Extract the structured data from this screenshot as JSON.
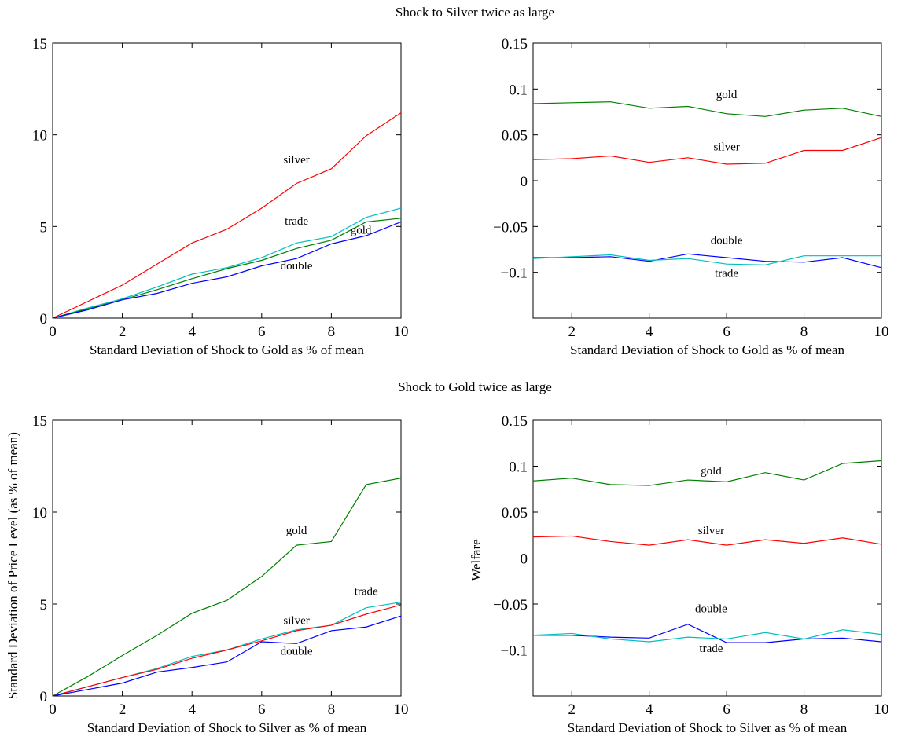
{
  "titles": {
    "top": "Shock to Silver twice as large",
    "bottom": "Shock to Gold twice as large"
  },
  "side_labels": {
    "left": "Standard Deviation of Price Level (as % of mean)",
    "right": "Welfare"
  },
  "colors": {
    "silver": "#ff0000",
    "gold": "#008000",
    "trade": "#00bfbf",
    "double": "#0000ff"
  },
  "chart_data": [
    {
      "id": "top-left",
      "type": "line",
      "xlabel": "Standard Deviation of Shock to Gold as % of mean",
      "ylabel": "",
      "xlim": [
        0,
        10
      ],
      "ylim": [
        0,
        15
      ],
      "xticks": [
        0,
        2,
        4,
        6,
        8,
        10
      ],
      "yticks": [
        0,
        5,
        10,
        15
      ],
      "ytick_labels": [
        "0",
        "5",
        "10",
        "15"
      ],
      "grid": false,
      "x": [
        0,
        1,
        2,
        3,
        4,
        5,
        6,
        7,
        8,
        9,
        10
      ],
      "series": [
        {
          "name": "silver",
          "color": "#ff0000",
          "values": [
            0,
            0.9,
            1.8,
            2.95,
            4.1,
            4.85,
            6.0,
            7.35,
            8.15,
            9.95,
            11.2
          ],
          "label_at": [
            7,
            8.45
          ]
        },
        {
          "name": "trade",
          "color": "#00bfbf",
          "values": [
            0,
            0.55,
            1.05,
            1.7,
            2.4,
            2.75,
            3.3,
            4.1,
            4.45,
            5.5,
            6.0
          ],
          "label_at": [
            7,
            5.1
          ]
        },
        {
          "name": "gold",
          "color": "#008000",
          "values": [
            0,
            0.5,
            1.0,
            1.55,
            2.15,
            2.7,
            3.15,
            3.8,
            4.25,
            5.25,
            5.45
          ],
          "label_at": [
            8.85,
            4.6
          ]
        },
        {
          "name": "double",
          "color": "#0000ff",
          "values": [
            0,
            0.45,
            1.0,
            1.35,
            1.9,
            2.25,
            2.85,
            3.25,
            4.05,
            4.5,
            5.25
          ],
          "label_at": [
            7,
            2.65
          ]
        }
      ]
    },
    {
      "id": "top-right",
      "type": "line",
      "xlabel": "Standard Deviation of Shock to Gold as % of mean",
      "ylabel": "",
      "xlim": [
        1,
        10
      ],
      "ylim": [
        -0.15,
        0.15
      ],
      "xticks": [
        2,
        4,
        6,
        8,
        10
      ],
      "yticks": [
        -0.1,
        -0.05,
        0,
        0.05,
        0.1,
        0.15
      ],
      "ytick_labels": [
        "−0.1",
        "−0.05",
        "0",
        "0.05",
        "0.1",
        "0.15"
      ],
      "grid": false,
      "x": [
        1,
        2,
        3,
        4,
        5,
        6,
        7,
        8,
        9,
        10
      ],
      "series": [
        {
          "name": "gold",
          "color": "#008000",
          "values": [
            0.084,
            0.085,
            0.086,
            0.079,
            0.081,
            0.073,
            0.07,
            0.077,
            0.079,
            0.07
          ],
          "label_at": [
            6,
            0.09
          ]
        },
        {
          "name": "silver",
          "color": "#ff0000",
          "values": [
            0.023,
            0.024,
            0.027,
            0.02,
            0.025,
            0.018,
            0.019,
            0.033,
            0.033,
            0.047
          ],
          "label_at": [
            6,
            0.033
          ]
        },
        {
          "name": "double",
          "color": "#0000ff",
          "values": [
            -0.084,
            -0.084,
            -0.083,
            -0.088,
            -0.08,
            -0.084,
            -0.088,
            -0.089,
            -0.084,
            -0.095
          ],
          "label_at": [
            6,
            -0.069
          ]
        },
        {
          "name": "trade",
          "color": "#00bfbf",
          "values": [
            -0.085,
            -0.083,
            -0.081,
            -0.087,
            -0.085,
            -0.091,
            -0.092,
            -0.082,
            -0.082,
            -0.082
          ],
          "label_at": [
            6,
            -0.105
          ]
        }
      ]
    },
    {
      "id": "bottom-left",
      "type": "line",
      "xlabel": "Standard Deviation of Shock to Silver as % of mean",
      "ylabel": "Standard Deviation of Price Level (as % of mean)",
      "xlim": [
        0,
        10
      ],
      "ylim": [
        0,
        15
      ],
      "xticks": [
        0,
        2,
        4,
        6,
        8,
        10
      ],
      "yticks": [
        0,
        5,
        10,
        15
      ],
      "ytick_labels": [
        "0",
        "5",
        "10",
        "15"
      ],
      "grid": false,
      "x": [
        0,
        1,
        2,
        3,
        4,
        5,
        6,
        7,
        8,
        9,
        10
      ],
      "series": [
        {
          "name": "gold",
          "color": "#008000",
          "values": [
            0,
            1.05,
            2.2,
            3.3,
            4.5,
            5.2,
            6.5,
            8.2,
            8.4,
            11.5,
            11.85
          ],
          "label_at": [
            7,
            8.8
          ]
        },
        {
          "name": "trade",
          "color": "#00bfbf",
          "values": [
            0,
            0.5,
            1.0,
            1.5,
            2.15,
            2.5,
            3.1,
            3.6,
            3.85,
            4.8,
            5.1
          ],
          "label_at": [
            9,
            5.5
          ]
        },
        {
          "name": "silver",
          "color": "#ff0000",
          "values": [
            0,
            0.5,
            1.0,
            1.45,
            2.05,
            2.5,
            3.0,
            3.55,
            3.85,
            4.45,
            4.95
          ],
          "label_at": [
            7,
            3.9
          ]
        },
        {
          "name": "double",
          "color": "#0000ff",
          "values": [
            0,
            0.35,
            0.7,
            1.3,
            1.55,
            1.85,
            2.95,
            2.85,
            3.55,
            3.75,
            4.35
          ],
          "label_at": [
            7,
            2.25
          ]
        }
      ]
    },
    {
      "id": "bottom-right",
      "type": "line",
      "xlabel": "Standard Deviation of Shock to Silver as % of mean",
      "ylabel": "Welfare",
      "xlim": [
        1,
        10
      ],
      "ylim": [
        -0.15,
        0.15
      ],
      "xticks": [
        2,
        4,
        6,
        8,
        10
      ],
      "yticks": [
        -0.1,
        -0.05,
        0,
        0.05,
        0.1,
        0.15
      ],
      "ytick_labels": [
        "−0.1",
        "−0.05",
        "0",
        "0.05",
        "0.1",
        "0.15"
      ],
      "grid": false,
      "x": [
        1,
        2,
        3,
        4,
        5,
        6,
        7,
        8,
        9,
        10
      ],
      "series": [
        {
          "name": "gold",
          "color": "#008000",
          "values": [
            0.084,
            0.087,
            0.08,
            0.079,
            0.085,
            0.083,
            0.093,
            0.085,
            0.103,
            0.106
          ],
          "label_at": [
            5.6,
            0.091
          ]
        },
        {
          "name": "silver",
          "color": "#ff0000",
          "values": [
            0.023,
            0.024,
            0.018,
            0.014,
            0.02,
            0.014,
            0.02,
            0.016,
            0.022,
            0.015
          ],
          "label_at": [
            5.6,
            0.026
          ]
        },
        {
          "name": "double",
          "color": "#0000ff",
          "values": [
            -0.084,
            -0.084,
            -0.086,
            -0.087,
            -0.072,
            -0.092,
            -0.092,
            -0.088,
            -0.087,
            -0.091
          ],
          "label_at": [
            5.6,
            -0.059
          ]
        },
        {
          "name": "trade",
          "color": "#00bfbf",
          "values": [
            -0.084,
            -0.082,
            -0.088,
            -0.091,
            -0.086,
            -0.088,
            -0.081,
            -0.088,
            -0.078,
            -0.083
          ],
          "label_at": [
            5.6,
            -0.102
          ]
        }
      ]
    }
  ]
}
